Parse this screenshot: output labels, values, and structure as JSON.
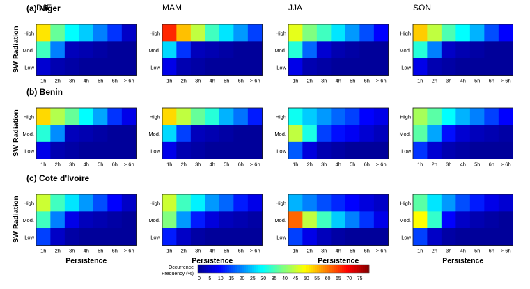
{
  "chart_data": {
    "type": "heatmap",
    "x_tick_labels": [
      "1h",
      "2h",
      "3h",
      "4h",
      "5h",
      "6h",
      "> 6h"
    ],
    "y_tick_labels": [
      "High",
      "Mod.",
      "Low"
    ],
    "ylabel": "SW Radiation",
    "xlabel": "Persistence",
    "seasons": [
      "DJF",
      "MAM",
      "JJA",
      "SON"
    ],
    "colorbar": {
      "label_line1": "Occurrence",
      "label_line2": "Frequency (%)",
      "ticks": [
        0,
        5,
        10,
        15,
        20,
        25,
        30,
        35,
        40,
        45,
        50,
        55,
        60,
        65,
        70,
        75
      ],
      "range": [
        0,
        80
      ]
    },
    "regions": [
      {
        "title": "(a) Niger",
        "panels": [
          {
            "season": "DJF",
            "values": [
              [
                52,
                38,
                30,
                26,
                20,
                14,
                5
              ],
              [
                35,
                20,
                4,
                3,
                2,
                1,
                1
              ],
              [
                6,
                3,
                2,
                1,
                1,
                1,
                1
              ]
            ]
          },
          {
            "season": "MAM",
            "values": [
              [
                67,
                55,
                45,
                35,
                28,
                22,
                15
              ],
              [
                27,
                14,
                4,
                3,
                2,
                1,
                1
              ],
              [
                8,
                3,
                2,
                1,
                1,
                1,
                1
              ]
            ]
          },
          {
            "season": "JJA",
            "values": [
              [
                48,
                40,
                35,
                28,
                22,
                16,
                10
              ],
              [
                33,
                18,
                6,
                3,
                2,
                1,
                1
              ],
              [
                8,
                3,
                2,
                1,
                1,
                1,
                1
              ]
            ]
          },
          {
            "season": "SON",
            "values": [
              [
                54,
                45,
                36,
                30,
                24,
                16,
                10
              ],
              [
                33,
                20,
                5,
                3,
                2,
                1,
                1
              ],
              [
                8,
                3,
                2,
                1,
                1,
                1,
                1
              ]
            ]
          }
        ]
      },
      {
        "title": "(b) Benin",
        "panels": [
          {
            "season": "DJF",
            "values": [
              [
                53,
                44,
                38,
                30,
                23,
                14,
                8
              ],
              [
                33,
                21,
                4,
                3,
                2,
                1,
                1
              ],
              [
                8,
                3,
                2,
                1,
                1,
                1,
                1
              ]
            ]
          },
          {
            "season": "MAM",
            "values": [
              [
                53,
                45,
                38,
                33,
                24,
                19,
                12
              ],
              [
                27,
                15,
                4,
                3,
                2,
                1,
                1
              ],
              [
                8,
                3,
                2,
                1,
                1,
                1,
                1
              ]
            ]
          },
          {
            "season": "JJA",
            "values": [
              [
                31,
                26,
                22,
                18,
                15,
                10,
                8
              ],
              [
                45,
                32,
                15,
                11,
                9,
                6,
                4
              ],
              [
                17,
                7,
                3,
                2,
                1,
                1,
                1
              ]
            ]
          },
          {
            "season": "SON",
            "values": [
              [
                43,
                37,
                30,
                24,
                20,
                15,
                10
              ],
              [
                37,
                23,
                11,
                6,
                4,
                3,
                2
              ],
              [
                14,
                6,
                3,
                2,
                1,
                1,
                1
              ]
            ]
          }
        ]
      },
      {
        "title": "(c) Cote d'Ivoire",
        "panels": [
          {
            "season": "DJF",
            "values": [
              [
                46,
                35,
                28,
                22,
                16,
                10,
                5
              ],
              [
                35,
                20,
                8,
                4,
                3,
                2,
                1
              ],
              [
                15,
                5,
                2,
                1,
                1,
                1,
                1
              ]
            ]
          },
          {
            "season": "MAM",
            "values": [
              [
                46,
                35,
                29,
                22,
                18,
                12,
                8
              ],
              [
                40,
                22,
                12,
                7,
                4,
                3,
                2
              ],
              [
                12,
                5,
                2,
                1,
                1,
                1,
                1
              ]
            ]
          },
          {
            "season": "JJA",
            "values": [
              [
                24,
                20,
                16,
                13,
                10,
                7,
                5
              ],
              [
                62,
                45,
                35,
                26,
                20,
                14,
                8
              ],
              [
                15,
                8,
                4,
                2,
                1,
                1,
                1
              ]
            ]
          },
          {
            "season": "SON",
            "values": [
              [
                37,
                28,
                22,
                16,
                12,
                8,
                6
              ],
              [
                50,
                34,
                10,
                5,
                3,
                2,
                1
              ],
              [
                15,
                5,
                2,
                1,
                1,
                1,
                1
              ]
            ]
          }
        ]
      }
    ]
  },
  "colors": {
    "colormap": [
      "#00008f",
      "#0000ff",
      "#0080ff",
      "#00ffff",
      "#80ff80",
      "#ffff00",
      "#ff8000",
      "#ff0000",
      "#800000"
    ],
    "cell_border": "#000000",
    "background": "#ffffff"
  }
}
